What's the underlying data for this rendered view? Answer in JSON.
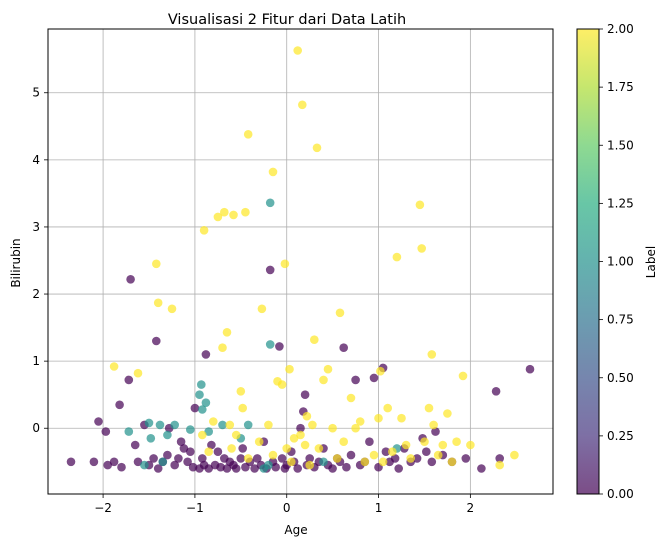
{
  "chart_data": {
    "type": "scatter",
    "title": "Visualisasi 2 Fitur dari Data Latih",
    "xlabel": "Age",
    "ylabel": "Bilirubin",
    "xlim": [
      -2.6,
      2.9
    ],
    "ylim": [
      -0.98,
      5.95
    ],
    "xticks": [
      -2,
      -1,
      0,
      1,
      2
    ],
    "yticks": [
      0,
      1,
      2,
      3,
      4,
      5
    ],
    "grid": true,
    "colorbar": {
      "label": "Label",
      "range": [
        0,
        2
      ],
      "ticks": [
        "0.00",
        "0.25",
        "0.50",
        "0.75",
        "1.00",
        "1.25",
        "1.50",
        "1.75",
        "2.00"
      ],
      "colormap": "viridis"
    },
    "point_alpha": 0.7,
    "label_colors": {
      "0": "#440154",
      "1": "#21918c",
      "2": "#fde725"
    },
    "points": [
      [
        -2.35,
        -0.5,
        0
      ],
      [
        -2.1,
        -0.5,
        0
      ],
      [
        -2.05,
        0.1,
        0
      ],
      [
        -1.97,
        -0.05,
        0
      ],
      [
        -1.95,
        -0.55,
        0
      ],
      [
        -1.88,
        -0.5,
        0
      ],
      [
        -1.82,
        0.35,
        0
      ],
      [
        -1.8,
        -0.58,
        0
      ],
      [
        -1.72,
        0.72,
        0
      ],
      [
        -1.7,
        2.22,
        0
      ],
      [
        -1.65,
        -0.25,
        0
      ],
      [
        -1.62,
        -0.5,
        0
      ],
      [
        -1.55,
        0.05,
        0
      ],
      [
        -1.5,
        -0.55,
        0
      ],
      [
        -1.45,
        -0.45,
        0
      ],
      [
        -1.42,
        1.3,
        0
      ],
      [
        -1.4,
        -0.6,
        0
      ],
      [
        -1.35,
        -0.5,
        0
      ],
      [
        -1.3,
        -0.4,
        0
      ],
      [
        -1.28,
        0.0,
        0
      ],
      [
        -1.22,
        -0.55,
        0
      ],
      [
        -1.18,
        -0.45,
        0
      ],
      [
        -1.15,
        -0.2,
        0
      ],
      [
        -1.12,
        -0.3,
        0
      ],
      [
        -1.08,
        -0.5,
        0
      ],
      [
        -1.05,
        -0.35,
        0
      ],
      [
        -1.02,
        -0.58,
        0
      ],
      [
        -1.0,
        0.3,
        0
      ],
      [
        -0.95,
        -0.6,
        0
      ],
      [
        -0.92,
        -0.45,
        0
      ],
      [
        -0.9,
        -0.55,
        0
      ],
      [
        -0.88,
        1.1,
        0
      ],
      [
        -0.85,
        -0.6,
        0
      ],
      [
        -0.82,
        -0.25,
        0
      ],
      [
        -0.78,
        -0.55,
        0
      ],
      [
        -0.75,
        -0.35,
        0
      ],
      [
        -0.72,
        -0.58,
        0
      ],
      [
        -0.68,
        -0.45,
        0
      ],
      [
        -0.65,
        -0.6,
        0
      ],
      [
        -0.62,
        -0.5,
        0
      ],
      [
        -0.58,
        -0.55,
        0
      ],
      [
        -0.55,
        -0.6,
        0
      ],
      [
        -0.5,
        -0.45,
        0
      ],
      [
        -0.48,
        -0.3,
        0
      ],
      [
        -0.45,
        -0.58,
        0
      ],
      [
        -0.4,
        -0.5,
        0
      ],
      [
        -0.35,
        -0.6,
        0
      ],
      [
        -0.32,
        -0.45,
        0
      ],
      [
        -0.28,
        -0.55,
        0
      ],
      [
        -0.25,
        -0.2,
        0
      ],
      [
        -0.22,
        -0.6,
        0
      ],
      [
        -0.18,
        2.36,
        0
      ],
      [
        -0.15,
        -0.5,
        0
      ],
      [
        -0.12,
        -0.58,
        0
      ],
      [
        -0.08,
        1.22,
        0
      ],
      [
        -0.05,
        -0.45,
        0
      ],
      [
        -0.02,
        -0.6,
        0
      ],
      [
        0.0,
        -0.55,
        0
      ],
      [
        0.05,
        -0.35,
        0
      ],
      [
        0.08,
        -0.5,
        0
      ],
      [
        0.12,
        -0.6,
        0
      ],
      [
        0.15,
        0.0,
        0
      ],
      [
        0.18,
        0.25,
        0
      ],
      [
        0.2,
        0.5,
        0
      ],
      [
        0.22,
        -0.55,
        0
      ],
      [
        0.25,
        -0.45,
        0
      ],
      [
        0.3,
        -0.58,
        0
      ],
      [
        0.35,
        -0.5,
        0
      ],
      [
        0.4,
        -0.3,
        0
      ],
      [
        0.45,
        -0.55,
        0
      ],
      [
        0.5,
        -0.6,
        0
      ],
      [
        0.55,
        -0.45,
        0
      ],
      [
        0.58,
        -0.5,
        0
      ],
      [
        0.62,
        1.2,
        0
      ],
      [
        0.65,
        -0.58,
        0
      ],
      [
        0.7,
        -0.4,
        0
      ],
      [
        0.75,
        0.72,
        0
      ],
      [
        0.8,
        -0.55,
        0
      ],
      [
        0.85,
        -0.5,
        0
      ],
      [
        0.9,
        -0.2,
        0
      ],
      [
        0.95,
        0.75,
        0
      ],
      [
        1.0,
        -0.58,
        0
      ],
      [
        1.05,
        0.9,
        0
      ],
      [
        1.08,
        -0.35,
        0
      ],
      [
        1.12,
        -0.5,
        0
      ],
      [
        1.18,
        -0.45,
        0
      ],
      [
        1.22,
        -0.6,
        0
      ],
      [
        1.28,
        -0.3,
        0
      ],
      [
        1.35,
        -0.5,
        0
      ],
      [
        1.42,
        -0.45,
        0
      ],
      [
        1.48,
        -0.15,
        0
      ],
      [
        1.52,
        -0.35,
        0
      ],
      [
        1.58,
        -0.5,
        0
      ],
      [
        1.62,
        -0.05,
        0
      ],
      [
        1.7,
        -0.4,
        0
      ],
      [
        1.8,
        -0.5,
        0
      ],
      [
        1.95,
        -0.45,
        0
      ],
      [
        2.12,
        -0.6,
        0
      ],
      [
        2.28,
        0.55,
        0
      ],
      [
        2.32,
        -0.45,
        0
      ],
      [
        2.65,
        0.88,
        0
      ],
      [
        -1.72,
        -0.05,
        1
      ],
      [
        -1.55,
        -0.55,
        1
      ],
      [
        -1.5,
        0.08,
        1
      ],
      [
        -1.48,
        -0.15,
        1
      ],
      [
        -1.38,
        0.05,
        1
      ],
      [
        -1.35,
        -0.5,
        1
      ],
      [
        -1.3,
        -0.1,
        1
      ],
      [
        -1.22,
        0.05,
        1
      ],
      [
        -1.05,
        -0.02,
        1
      ],
      [
        -0.95,
        0.5,
        1
      ],
      [
        -0.93,
        0.65,
        1
      ],
      [
        -0.92,
        0.28,
        1
      ],
      [
        -0.88,
        0.38,
        1
      ],
      [
        -0.85,
        -0.05,
        1
      ],
      [
        -0.7,
        0.05,
        1
      ],
      [
        -0.5,
        -0.15,
        1
      ],
      [
        -0.42,
        0.05,
        1
      ],
      [
        -0.25,
        -0.6,
        1
      ],
      [
        -0.2,
        -0.55,
        1
      ],
      [
        -0.18,
        3.36,
        1
      ],
      [
        -0.18,
        1.25,
        1
      ],
      [
        0.4,
        -0.5,
        1
      ],
      [
        1.2,
        -0.3,
        1
      ],
      [
        -1.88,
        0.92,
        2
      ],
      [
        -1.62,
        0.82,
        2
      ],
      [
        -1.42,
        2.45,
        2
      ],
      [
        -1.4,
        1.87,
        2
      ],
      [
        -1.25,
        1.78,
        2
      ],
      [
        -0.92,
        -0.1,
        2
      ],
      [
        -0.9,
        2.95,
        2
      ],
      [
        -0.85,
        -0.35,
        2
      ],
      [
        -0.8,
        0.1,
        2
      ],
      [
        -0.75,
        3.15,
        2
      ],
      [
        -0.7,
        1.2,
        2
      ],
      [
        -0.68,
        3.22,
        2
      ],
      [
        -0.65,
        1.43,
        2
      ],
      [
        -0.62,
        0.05,
        2
      ],
      [
        -0.6,
        -0.3,
        2
      ],
      [
        -0.58,
        3.18,
        2
      ],
      [
        -0.55,
        -0.1,
        2
      ],
      [
        -0.5,
        0.55,
        2
      ],
      [
        -0.48,
        0.3,
        2
      ],
      [
        -0.45,
        3.22,
        2
      ],
      [
        -0.42,
        4.38,
        2
      ],
      [
        -0.42,
        -0.45,
        2
      ],
      [
        -0.3,
        -0.2,
        2
      ],
      [
        -0.27,
        1.78,
        2
      ],
      [
        -0.2,
        0.05,
        2
      ],
      [
        -0.15,
        3.82,
        2
      ],
      [
        -0.15,
        -0.4,
        2
      ],
      [
        -0.1,
        0.7,
        2
      ],
      [
        -0.05,
        0.65,
        2
      ],
      [
        -0.02,
        2.45,
        2
      ],
      [
        0.0,
        -0.3,
        2
      ],
      [
        0.03,
        0.88,
        2
      ],
      [
        0.05,
        -0.5,
        2
      ],
      [
        0.08,
        -0.15,
        2
      ],
      [
        0.12,
        5.63,
        2
      ],
      [
        0.15,
        -0.1,
        2
      ],
      [
        0.17,
        4.82,
        2
      ],
      [
        0.2,
        -0.25,
        2
      ],
      [
        0.22,
        0.18,
        2
      ],
      [
        0.25,
        -0.55,
        2
      ],
      [
        0.28,
        0.05,
        2
      ],
      [
        0.3,
        1.32,
        2
      ],
      [
        0.33,
        4.18,
        2
      ],
      [
        0.35,
        -0.3,
        2
      ],
      [
        0.4,
        0.72,
        2
      ],
      [
        0.45,
        0.88,
        2
      ],
      [
        0.5,
        0.0,
        2
      ],
      [
        0.55,
        -0.45,
        2
      ],
      [
        0.58,
        1.72,
        2
      ],
      [
        0.62,
        -0.2,
        2
      ],
      [
        0.7,
        0.45,
        2
      ],
      [
        0.75,
        0.0,
        2
      ],
      [
        0.8,
        0.1,
        2
      ],
      [
        0.85,
        -0.5,
        2
      ],
      [
        0.95,
        -0.4,
        2
      ],
      [
        1.0,
        0.15,
        2
      ],
      [
        1.02,
        0.85,
        2
      ],
      [
        1.05,
        -0.5,
        2
      ],
      [
        1.1,
        0.3,
        2
      ],
      [
        1.15,
        -0.35,
        2
      ],
      [
        1.2,
        2.55,
        2
      ],
      [
        1.25,
        0.15,
        2
      ],
      [
        1.3,
        -0.25,
        2
      ],
      [
        1.35,
        -0.45,
        2
      ],
      [
        1.45,
        3.33,
        2
      ],
      [
        1.47,
        2.68,
        2
      ],
      [
        1.5,
        -0.2,
        2
      ],
      [
        1.55,
        0.3,
        2
      ],
      [
        1.58,
        1.1,
        2
      ],
      [
        1.6,
        0.05,
        2
      ],
      [
        1.65,
        -0.4,
        2
      ],
      [
        1.7,
        -0.25,
        2
      ],
      [
        1.75,
        0.22,
        2
      ],
      [
        1.8,
        -0.5,
        2
      ],
      [
        1.85,
        -0.2,
        2
      ],
      [
        1.92,
        0.78,
        2
      ],
      [
        2.0,
        -0.25,
        2
      ],
      [
        2.32,
        -0.55,
        2
      ],
      [
        2.48,
        -0.4,
        2
      ]
    ]
  }
}
